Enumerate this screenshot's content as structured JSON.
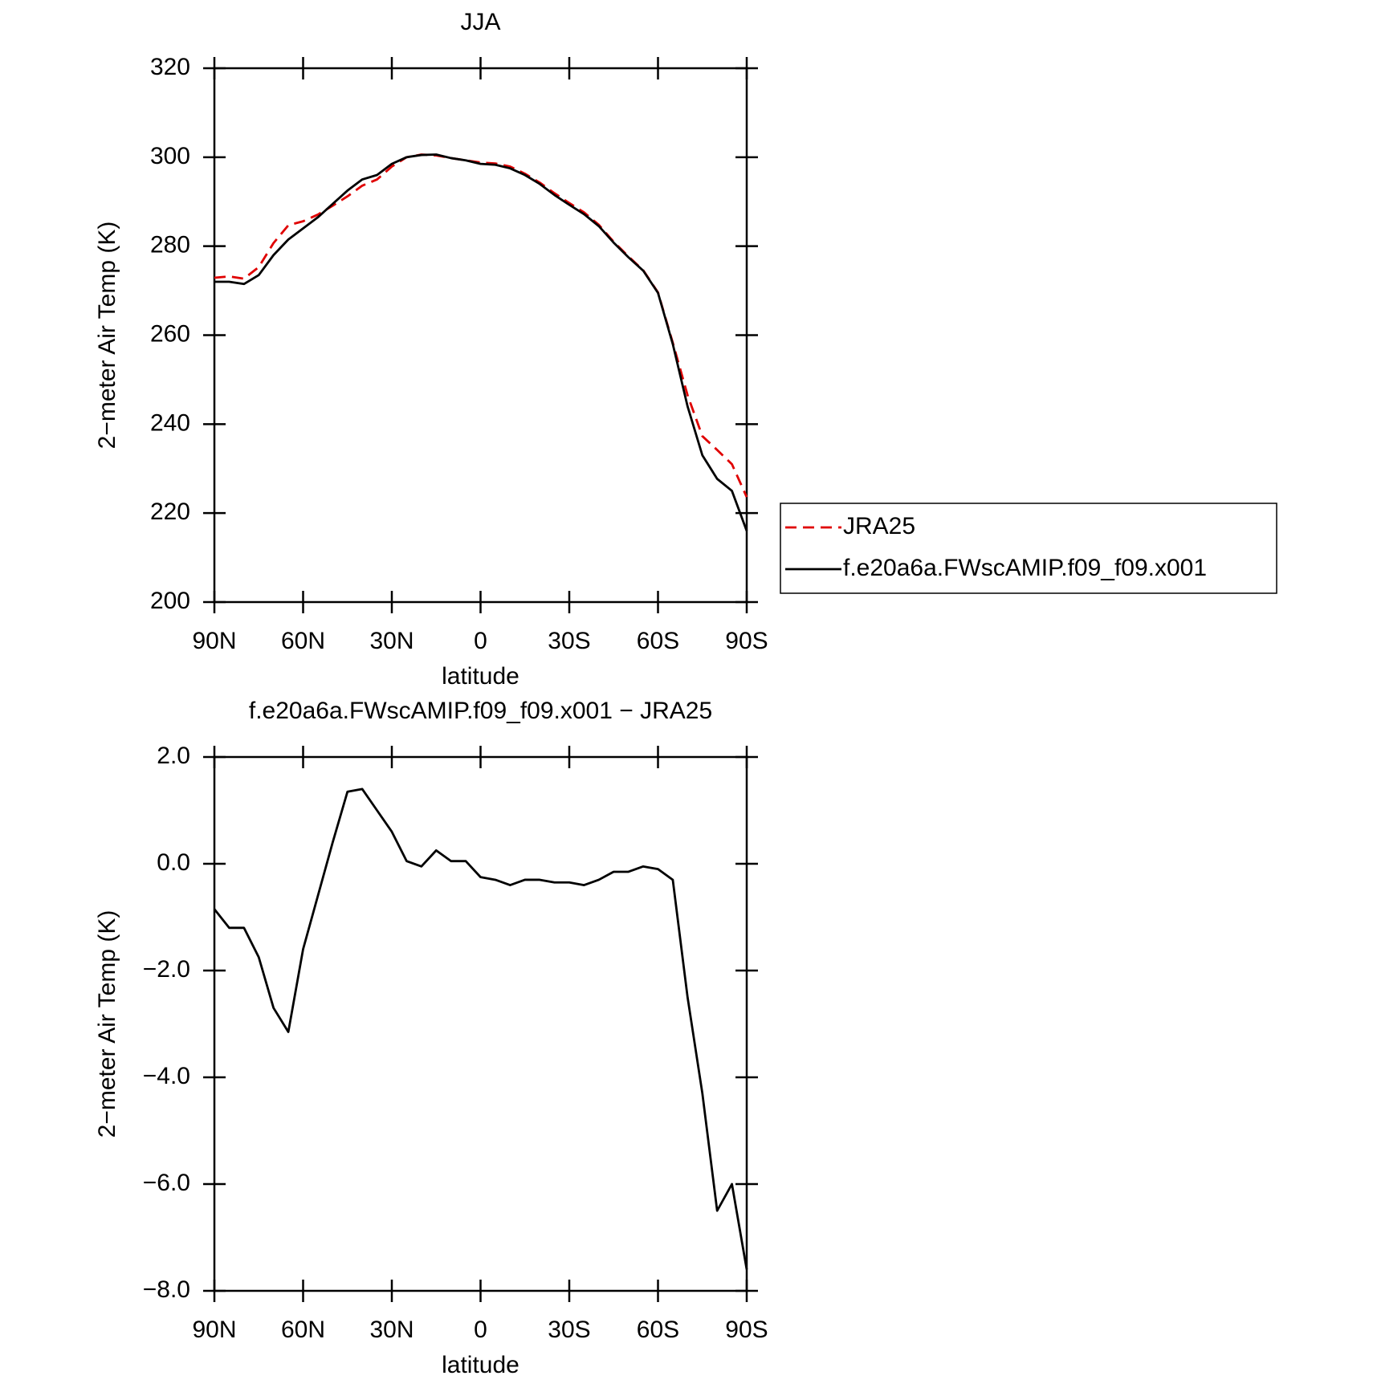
{
  "chart_data": [
    {
      "type": "line",
      "title": "JJA",
      "xlabel": "latitude",
      "ylabel": "2−meter Air Temp (K)",
      "x": [
        90,
        85,
        80,
        75,
        70,
        65,
        60,
        55,
        50,
        45,
        40,
        35,
        30,
        25,
        20,
        15,
        10,
        5,
        0,
        -5,
        -10,
        -15,
        -20,
        -25,
        -30,
        -35,
        -40,
        -45,
        -50,
        -55,
        -60,
        -65,
        -70,
        -75,
        -80,
        -85,
        -90
      ],
      "series": [
        {
          "name": "JRA25",
          "color": "#e00000",
          "linestyle": "dashed",
          "values": [
            272.9,
            273.2,
            272.7,
            275.3,
            280.7,
            284.7,
            285.6,
            287.1,
            289.1,
            291.2,
            293.6,
            295.0,
            297.9,
            300.0,
            300.6,
            300.4,
            299.8,
            299.3,
            298.8,
            298.6,
            297.9,
            296.3,
            294.3,
            291.9,
            289.7,
            287.6,
            284.8,
            281.0,
            277.7,
            274.6,
            269.6,
            258.3,
            246.5,
            237.3,
            234.2,
            231.0,
            223.6
          ]
        },
        {
          "name": "f.e20a6a.FWscAMIP.f09_f09.x001",
          "color": "#000000",
          "linestyle": "solid",
          "values": [
            272,
            272,
            271.5,
            273.5,
            278,
            281.5,
            284,
            286.5,
            289.5,
            292.5,
            295,
            296,
            298.5,
            300,
            300.5,
            300.6,
            299.8,
            299.3,
            298.5,
            298.3,
            297.5,
            296,
            294,
            291.5,
            289.3,
            287.2,
            284.5,
            280.8,
            277.5,
            274.5,
            269.5,
            258,
            244,
            233,
            227.7,
            225,
            216
          ]
        }
      ],
      "xlim": [
        90,
        -90
      ],
      "xticks": [
        {
          "value": 90,
          "label": "90N"
        },
        {
          "value": 60,
          "label": "60N"
        },
        {
          "value": 30,
          "label": "30N"
        },
        0,
        {
          "value": -30,
          "label": "30S"
        },
        {
          "value": -60,
          "label": "60S"
        },
        {
          "value": -90,
          "label": "90S"
        }
      ],
      "ylim": [
        200,
        320
      ],
      "yticks": [
        200,
        220,
        240,
        260,
        280,
        300,
        320
      ],
      "legend": "right"
    },
    {
      "type": "line",
      "title": "f.e20a6a.FWscAMIP.f09_f09.x001 − JRA25",
      "xlabel": "latitude",
      "ylabel": "2−meter Air Temp (K)",
      "x": [
        90,
        85,
        80,
        75,
        70,
        65,
        60,
        55,
        50,
        45,
        40,
        35,
        30,
        25,
        20,
        15,
        10,
        5,
        0,
        -5,
        -10,
        -15,
        -20,
        -25,
        -30,
        -35,
        -40,
        -45,
        -50,
        -55,
        -60,
        -65,
        -70,
        -75,
        -80,
        -85,
        -90
      ],
      "values": [
        -0.85,
        -1.2,
        -1.2,
        -1.75,
        -2.7,
        -3.15,
        -1.6,
        -0.6,
        0.4,
        1.35,
        1.4,
        1.0,
        0.6,
        0.05,
        -0.05,
        0.25,
        0.05,
        0.05,
        -0.25,
        -0.3,
        -0.4,
        -0.3,
        -0.3,
        -0.35,
        -0.35,
        -0.4,
        -0.3,
        -0.15,
        -0.15,
        -0.05,
        -0.1,
        -0.3,
        -2.5,
        -4.3,
        -6.5,
        -6.0,
        -7.6
      ],
      "color": "#000000",
      "xlim": [
        90,
        -90
      ],
      "xticks": [
        {
          "value": 90,
          "label": "90N"
        },
        {
          "value": 60,
          "label": "60N"
        },
        {
          "value": 30,
          "label": "30N"
        },
        0,
        {
          "value": -30,
          "label": "30S"
        },
        {
          "value": -60,
          "label": "60S"
        },
        {
          "value": -90,
          "label": "90S"
        }
      ],
      "ylim": [
        -8,
        2
      ],
      "yticks": [
        {
          "value": -8,
          "label": "−8.0"
        },
        {
          "value": -6,
          "label": "−6.0"
        },
        {
          "value": -4,
          "label": "−4.0"
        },
        {
          "value": -2,
          "label": "−2.0"
        },
        {
          "value": 0,
          "label": "0.0"
        },
        {
          "value": 2,
          "label": "2.0"
        }
      ]
    }
  ]
}
